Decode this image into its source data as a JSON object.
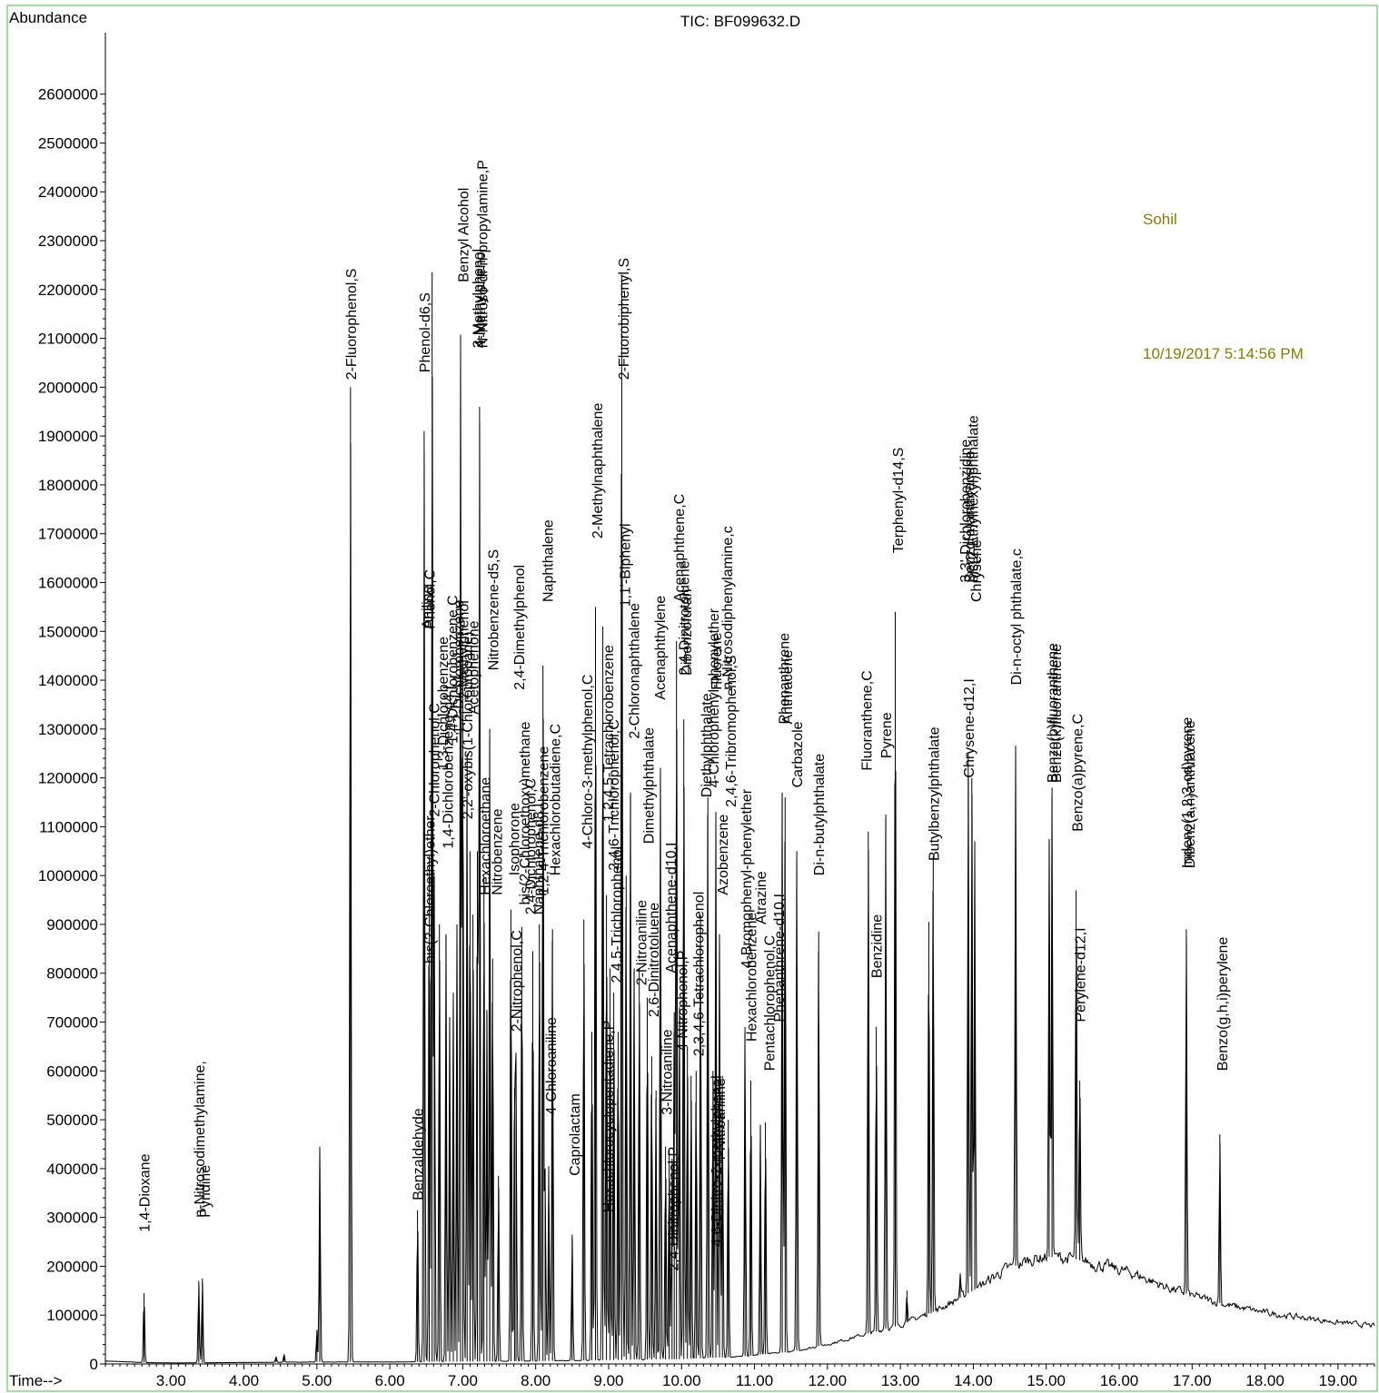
{
  "header": {
    "title": "TIC: BF099632.D",
    "y_axis_label": "Abundance",
    "x_axis_label": "Time-->",
    "operator": "Sohil",
    "timestamp": "10/19/2017  5:14:56 PM"
  },
  "colors": {
    "frame": "#33cc33",
    "trace": "#000000",
    "annotation": "#808000",
    "text": "#000000"
  },
  "chart_data": {
    "type": "line",
    "title": "TIC: BF099632.D",
    "xlabel": "Time-->",
    "ylabel": "Abundance",
    "xlim": [
      2.1,
      19.5
    ],
    "ylim": [
      0,
      2750000
    ],
    "x_ticks": [
      "3.00",
      "4.00",
      "5.00",
      "6.00",
      "7.00",
      "8.00",
      "9.00",
      "10.00",
      "11.00",
      "12.00",
      "13.00",
      "14.00",
      "15.00",
      "16.00",
      "17.00",
      "18.00",
      "19.00"
    ],
    "y_ticks": [
      "0",
      "100000",
      "200000",
      "300000",
      "400000",
      "500000",
      "600000",
      "700000",
      "800000",
      "900000",
      "1000000",
      "1100000",
      "1200000",
      "1300000",
      "1400000",
      "1500000",
      "1600000",
      "1700000",
      "1800000",
      "1900000",
      "2000000",
      "2100000",
      "2200000",
      "2300000",
      "2400000",
      "2500000",
      "2600000"
    ],
    "grid": false,
    "baseline": [
      [
        2.1,
        6000
      ],
      [
        2.6,
        3000
      ],
      [
        3.0,
        2000
      ],
      [
        4.0,
        3000
      ],
      [
        5.0,
        4000
      ],
      [
        6.0,
        4000
      ],
      [
        7.0,
        5000
      ],
      [
        8.0,
        6000
      ],
      [
        9.0,
        8000
      ],
      [
        10.0,
        10000
      ],
      [
        10.8,
        15000
      ],
      [
        11.5,
        25000
      ],
      [
        12.0,
        40000
      ],
      [
        12.5,
        60000
      ],
      [
        13.0,
        80000
      ],
      [
        13.5,
        110000
      ],
      [
        14.0,
        150000
      ],
      [
        14.4,
        190000
      ],
      [
        14.8,
        215000
      ],
      [
        15.0,
        220000
      ],
      [
        15.4,
        215000
      ],
      [
        15.8,
        200000
      ],
      [
        16.2,
        185000
      ],
      [
        16.6,
        160000
      ],
      [
        17.0,
        140000
      ],
      [
        17.5,
        120000
      ],
      [
        18.0,
        105000
      ],
      [
        18.5,
        95000
      ],
      [
        19.0,
        85000
      ],
      [
        19.5,
        78000
      ]
    ],
    "peaks": [
      {
        "rt": 2.63,
        "height": 145000
      },
      {
        "rt": 3.38,
        "height": 170000
      },
      {
        "rt": 3.43,
        "height": 175000
      },
      {
        "rt": 4.44,
        "height": 15000
      },
      {
        "rt": 4.55,
        "height": 20000
      },
      {
        "rt": 5.0,
        "height": 70000
      },
      {
        "rt": 5.04,
        "height": 445000
      },
      {
        "rt": 5.46,
        "height": 2000000
      },
      {
        "rt": 6.38,
        "height": 315000
      },
      {
        "rt": 6.47,
        "height": 1910000
      },
      {
        "rt": 6.54,
        "height": 1040000
      },
      {
        "rt": 6.58,
        "height": 2235000
      },
      {
        "rt": 6.61,
        "height": 1000000
      },
      {
        "rt": 6.68,
        "height": 900000
      },
      {
        "rt": 6.77,
        "height": 880000
      },
      {
        "rt": 6.82,
        "height": 710000
      },
      {
        "rt": 6.87,
        "height": 760000
      },
      {
        "rt": 6.92,
        "height": 900000
      },
      {
        "rt": 6.97,
        "height": 2105000
      },
      {
        "rt": 7.0,
        "height": 1450000
      },
      {
        "rt": 7.06,
        "height": 1250000
      },
      {
        "rt": 7.1,
        "height": 1050000
      },
      {
        "rt": 7.14,
        "height": 920000
      },
      {
        "rt": 7.2,
        "height": 1050000
      },
      {
        "rt": 7.23,
        "height": 1960000
      },
      {
        "rt": 7.29,
        "height": 1000000
      },
      {
        "rt": 7.33,
        "height": 725000
      },
      {
        "rt": 7.37,
        "height": 1300000
      },
      {
        "rt": 7.41,
        "height": 830000
      },
      {
        "rt": 7.49,
        "height": 385000
      },
      {
        "rt": 7.66,
        "height": 930000
      },
      {
        "rt": 7.71,
        "height": 565000
      },
      {
        "rt": 7.73,
        "height": 600000
      },
      {
        "rt": 7.81,
        "height": 895000
      },
      {
        "rt": 7.96,
        "height": 845000
      },
      {
        "rt": 8.05,
        "height": 900000
      },
      {
        "rt": 8.1,
        "height": 1430000
      },
      {
        "rt": 8.13,
        "height": 400000
      },
      {
        "rt": 8.18,
        "height": 405000
      },
      {
        "rt": 8.23,
        "height": 890000
      },
      {
        "rt": 8.5,
        "height": 265000
      },
      {
        "rt": 8.66,
        "height": 910000
      },
      {
        "rt": 8.77,
        "height": 680000
      },
      {
        "rt": 8.82,
        "height": 1550000
      },
      {
        "rt": 8.92,
        "height": 1510000
      },
      {
        "rt": 8.97,
        "height": 960000
      },
      {
        "rt": 9.02,
        "height": 810000
      },
      {
        "rt": 9.07,
        "height": 760000
      },
      {
        "rt": 9.13,
        "height": 680000
      },
      {
        "rt": 9.18,
        "height": 2230000
      },
      {
        "rt": 9.24,
        "height": 1000000
      },
      {
        "rt": 9.3,
        "height": 1170000
      },
      {
        "rt": 9.35,
        "height": 810000
      },
      {
        "rt": 9.42,
        "height": 810000
      },
      {
        "rt": 9.53,
        "height": 750000
      },
      {
        "rt": 9.59,
        "height": 630000
      },
      {
        "rt": 9.65,
        "height": 560000
      },
      {
        "rt": 9.71,
        "height": 1220000
      },
      {
        "rt": 9.78,
        "height": 445000
      },
      {
        "rt": 9.83,
        "height": 440000
      },
      {
        "rt": 9.87,
        "height": 420000
      },
      {
        "rt": 9.9,
        "height": 720000
      },
      {
        "rt": 9.93,
        "height": 1480000
      },
      {
        "rt": 9.97,
        "height": 730000
      },
      {
        "rt": 10.03,
        "height": 1320000
      },
      {
        "rt": 10.08,
        "height": 650000
      },
      {
        "rt": 10.13,
        "height": 590000
      },
      {
        "rt": 10.2,
        "height": 600000
      },
      {
        "rt": 10.26,
        "height": 920000
      },
      {
        "rt": 10.36,
        "height": 1160000
      },
      {
        "rt": 10.43,
        "height": 600000
      },
      {
        "rt": 10.47,
        "height": 1130000
      },
      {
        "rt": 10.52,
        "height": 880000
      },
      {
        "rt": 10.56,
        "height": 590000
      },
      {
        "rt": 10.64,
        "height": 500000
      },
      {
        "rt": 10.87,
        "height": 690000
      },
      {
        "rt": 10.95,
        "height": 580000
      },
      {
        "rt": 11.08,
        "height": 490000
      },
      {
        "rt": 11.15,
        "height": 495000
      },
      {
        "rt": 11.38,
        "height": 1170000
      },
      {
        "rt": 11.42,
        "height": 1160000
      },
      {
        "rt": 11.58,
        "height": 1050000
      },
      {
        "rt": 11.88,
        "height": 885000
      },
      {
        "rt": 12.56,
        "height": 1090000
      },
      {
        "rt": 12.67,
        "height": 690000
      },
      {
        "rt": 12.8,
        "height": 1125000
      },
      {
        "rt": 12.93,
        "height": 1540000
      },
      {
        "rt": 13.09,
        "height": 150000
      },
      {
        "rt": 13.39,
        "height": 905000
      },
      {
        "rt": 13.45,
        "height": 1040000
      },
      {
        "rt": 13.82,
        "height": 180000
      },
      {
        "rt": 13.93,
        "height": 1250000
      },
      {
        "rt": 13.98,
        "height": 1200000
      },
      {
        "rt": 14.02,
        "height": 1070000
      },
      {
        "rt": 14.58,
        "height": 1260000
      },
      {
        "rt": 15.04,
        "height": 1070000
      },
      {
        "rt": 15.08,
        "height": 1180000
      },
      {
        "rt": 15.41,
        "height": 970000
      },
      {
        "rt": 15.46,
        "height": 580000
      },
      {
        "rt": 16.92,
        "height": 890000
      },
      {
        "rt": 17.38,
        "height": 470000
      }
    ],
    "annotations": [
      {
        "text": "1,4-Dioxane",
        "rt": 2.63,
        "y": 270000
      },
      {
        "text": "n-Nitrosodimethylamine,",
        "rt": 3.38,
        "y": 300000
      },
      {
        "text": "Pyridine",
        "rt": 3.46,
        "y": 300000
      },
      {
        "text": "2-Fluorophenol,S",
        "rt": 5.46,
        "y": 2015000
      },
      {
        "text": "Benzaldehyde",
        "rt": 6.38,
        "y": 335000
      },
      {
        "text": "Phenol-d6,S",
        "rt": 6.47,
        "y": 2030000
      },
      {
        "text": "Aniline",
        "rt": 6.5,
        "y": 1505000
      },
      {
        "text": "Phenol,C",
        "rt": 6.54,
        "y": 1505000
      },
      {
        "text": "bis(2-Chloroethyl)ether",
        "rt": 6.54,
        "y": 820000
      },
      {
        "text": "2-Chlorophenol,C",
        "rt": 6.6,
        "y": 1120000
      },
      {
        "text": "1,3-Dichlorobenzene",
        "rt": 6.72,
        "y": 1215000
      },
      {
        "text": "1,4-Dichlorobenzene-d4,I",
        "rt": 6.79,
        "y": 1055000
      },
      {
        "text": "1,4-Dichlorobenzene,C",
        "rt": 6.85,
        "y": 1270000
      },
      {
        "text": "1,2-Dichlorobenzene",
        "rt": 6.93,
        "y": 1290000
      },
      {
        "text": "2-Methylphenol",
        "rt": 7.0,
        "y": 1360000
      },
      {
        "text": "2,2'-oxybis(1-Chloropropane)",
        "rt": 7.06,
        "y": 1115000
      },
      {
        "text": "Benzyl Alcohol",
        "rt": 7.0,
        "y": 2215000
      },
      {
        "text": "3-Methylphenol",
        "rt": 7.2,
        "y": 2080000
      },
      {
        "text": "4-Methylphenol",
        "rt": 7.23,
        "y": 2080000
      },
      {
        "text": "N-Nitroso-di-n-propylamine,P",
        "rt": 7.26,
        "y": 2080000
      },
      {
        "text": "Acetophenone",
        "rt": 7.14,
        "y": 1330000
      },
      {
        "text": "Hexachloroethane",
        "rt": 7.3,
        "y": 960000
      },
      {
        "text": "Nitrobenzene-d5,S",
        "rt": 7.41,
        "y": 1420000
      },
      {
        "text": "Nitrobenzene",
        "rt": 7.46,
        "y": 960000
      },
      {
        "text": "Isophorone",
        "rt": 7.7,
        "y": 1000000
      },
      {
        "text": "2-Nitrophenol,C",
        "rt": 7.73,
        "y": 680000
      },
      {
        "text": "2,4-Dimethylphenol",
        "rt": 7.77,
        "y": 1380000
      },
      {
        "text": "bis(2-Chloroethoxy)methane",
        "rt": 7.84,
        "y": 940000
      },
      {
        "text": "2,4-Dichlorophenol,C",
        "rt": 7.92,
        "y": 920000
      },
      {
        "text": "Naphthalene-d8,I",
        "rt": 8.03,
        "y": 920000
      },
      {
        "text": "1,2,4-Trichlorobenzene",
        "rt": 8.1,
        "y": 960000
      },
      {
        "text": "Naphthalene",
        "rt": 8.16,
        "y": 1560000
      },
      {
        "text": "4-Chloroaniline",
        "rt": 8.2,
        "y": 510000
      },
      {
        "text": "Hexachlorobutadiene,C",
        "rt": 8.26,
        "y": 1000000
      },
      {
        "text": "Caprolactam",
        "rt": 8.53,
        "y": 385000
      },
      {
        "text": "4-Chloro-3-methylphenol,C",
        "rt": 8.7,
        "y": 1055000
      },
      {
        "text": "2-Methylnaphthalene",
        "rt": 8.84,
        "y": 1690000
      },
      {
        "text": "Hexachlorocyclopentadiene,P",
        "rt": 8.99,
        "y": 310000
      },
      {
        "text": "1,2,4,5-Tetrachlorobenzene",
        "rt": 8.99,
        "y": 1110000
      },
      {
        "text": "2,4,6-Trichlorophenol,C",
        "rt": 9.06,
        "y": 1010000
      },
      {
        "text": "2,4,5-Trichlorophenol",
        "rt": 9.1,
        "y": 780000
      },
      {
        "text": "2-Fluorobiphenyl,S",
        "rt": 9.2,
        "y": 2015000
      },
      {
        "text": "1,1'-Biphenyl",
        "rt": 9.22,
        "y": 1550000
      },
      {
        "text": "2-Chloronaphthalene",
        "rt": 9.34,
        "y": 1280000
      },
      {
        "text": "2-Nitroaniline",
        "rt": 9.44,
        "y": 775000
      },
      {
        "text": "Dimethylphthalate",
        "rt": 9.54,
        "y": 1065000
      },
      {
        "text": "2,6-Dinitrotoluene",
        "rt": 9.61,
        "y": 710000
      },
      {
        "text": "Acenaphthylene",
        "rt": 9.7,
        "y": 1360000
      },
      {
        "text": "3-Nitroaniline",
        "rt": 9.79,
        "y": 510000
      },
      {
        "text": "Acenaphthene-d10,I",
        "rt": 9.85,
        "y": 800000
      },
      {
        "text": "2,4-Dinitrophenol,P",
        "rt": 9.88,
        "y": 190000
      },
      {
        "text": "Acenaphthene,C",
        "rt": 9.96,
        "y": 1560000
      },
      {
        "text": "4-Nitrophenol,P",
        "rt": 10.0,
        "y": 640000
      },
      {
        "text": "2,4-Dinitrotoluene",
        "rt": 10.03,
        "y": 1410000
      },
      {
        "text": "Dibenzofuran",
        "rt": 10.06,
        "y": 1410000
      },
      {
        "text": "2,3,4,6-Tetrachlorophenol",
        "rt": 10.23,
        "y": 630000
      },
      {
        "text": "Diethylphthalate",
        "rt": 10.33,
        "y": 1160000
      },
      {
        "text": "4-Chlorophenyl-phenylether",
        "rt": 10.43,
        "y": 1180000
      },
      {
        "text": "Fluorene",
        "rt": 10.47,
        "y": 1380000
      },
      {
        "text": "4-Nitroaniline",
        "rt": 10.52,
        "y": 410000
      },
      {
        "text": "4,6-Dinitro-2-methylphenol",
        "rt": 10.47,
        "y": 240000
      },
      {
        "text": "n-Nitrosodiphenylamine,c",
        "rt": 10.62,
        "y": 1380000
      },
      {
        "text": "Azobenzene",
        "rt": 10.56,
        "y": 960000
      },
      {
        "text": "2,4,6-Tribromophenol,S",
        "rt": 10.67,
        "y": 1140000
      },
      {
        "text": "4-Bromophenyl-phenylether",
        "rt": 10.88,
        "y": 810000
      },
      {
        "text": "Hexachlorobenzene",
        "rt": 10.95,
        "y": 660000
      },
      {
        "text": "Atrazine",
        "rt": 11.08,
        "y": 900000
      },
      {
        "text": "Pentachlorophenol,C",
        "rt": 11.2,
        "y": 600000
      },
      {
        "text": "Phenanthrene-d10,I",
        "rt": 11.33,
        "y": 700000
      },
      {
        "text": "Phenanthrene",
        "rt": 11.4,
        "y": 1310000
      },
      {
        "text": "Anthracene",
        "rt": 11.44,
        "y": 1310000
      },
      {
        "text": "Carbazole",
        "rt": 11.58,
        "y": 1180000
      },
      {
        "text": "Di-n-butylphthalate",
        "rt": 11.88,
        "y": 1000000
      },
      {
        "text": "Fluoranthene,C",
        "rt": 12.53,
        "y": 1215000
      },
      {
        "text": "Benzidine",
        "rt": 12.67,
        "y": 790000
      },
      {
        "text": "Pyrene",
        "rt": 12.8,
        "y": 1240000
      },
      {
        "text": "Terphenyl-d14,S",
        "rt": 12.96,
        "y": 1660000
      },
      {
        "text": "Butylbenzylphthalate",
        "rt": 13.45,
        "y": 1030000
      },
      {
        "text": "Chrysene-d12,I",
        "rt": 13.93,
        "y": 1200000
      },
      {
        "text": "3,3'-Dichlorobenzidine",
        "rt": 13.88,
        "y": 1600000
      },
      {
        "text": "Benzo(a)anthracene",
        "rt": 13.94,
        "y": 1600000
      },
      {
        "text": "bis(2-Ethylhexyl)phthalate",
        "rt": 13.99,
        "y": 1600000
      },
      {
        "text": "Chrysene",
        "rt": 14.03,
        "y": 1560000
      },
      {
        "text": "Di-n-octyl phthalate,c",
        "rt": 14.58,
        "y": 1390000
      },
      {
        "text": "Benzo(b)fluoranthene",
        "rt": 15.08,
        "y": 1190000
      },
      {
        "text": "Benzo(k)fluoranthene",
        "rt": 15.13,
        "y": 1190000
      },
      {
        "text": "Benzo(a)pyrene,C",
        "rt": 15.42,
        "y": 1090000
      },
      {
        "text": "Perylene-d12,I",
        "rt": 15.46,
        "y": 700000
      },
      {
        "text": "Indeno(1,2,3-cd)pyrene",
        "rt": 16.92,
        "y": 1015000
      },
      {
        "text": "Dibenz(a,h)anthracene",
        "rt": 16.96,
        "y": 1015000
      },
      {
        "text": "Benzo(g,h,i)perylene",
        "rt": 17.41,
        "y": 600000
      }
    ]
  }
}
